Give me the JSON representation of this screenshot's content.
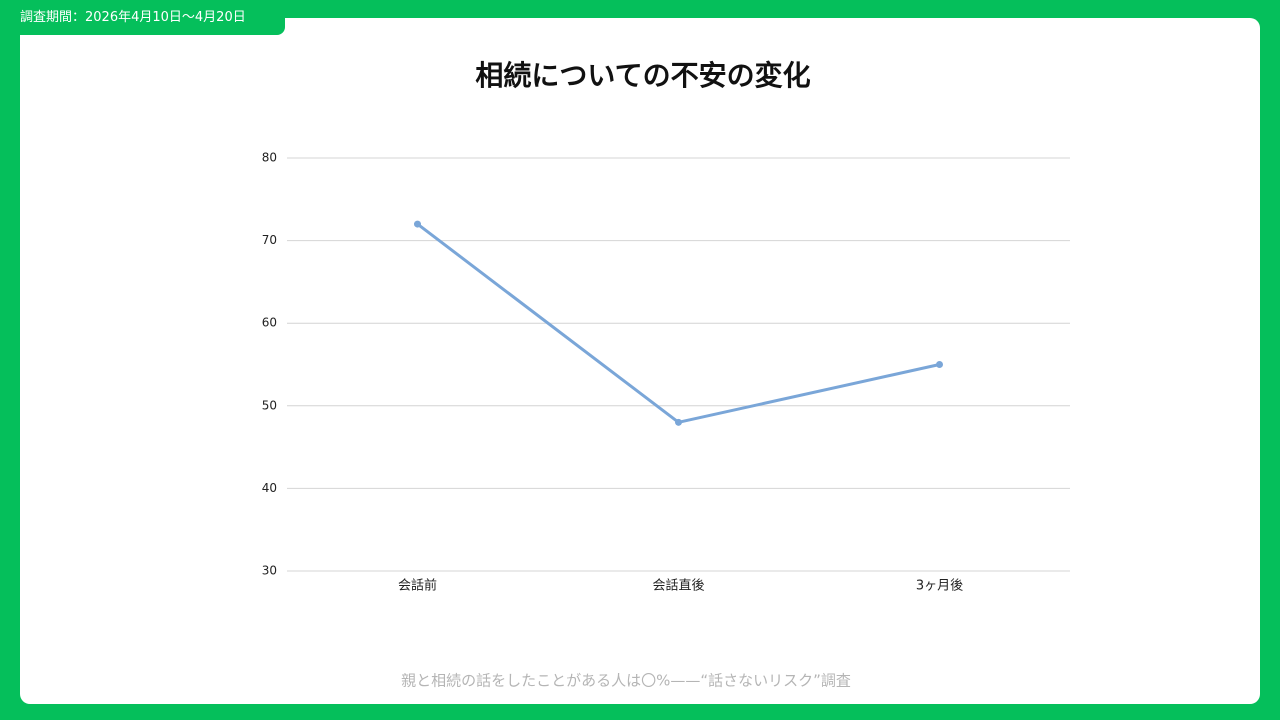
{
  "header": {
    "period": "調査期間：2026年4月10日〜4月20日"
  },
  "footer": "親と相続の話をしたことがある人は〇%——“話さないリスク”調査",
  "chart_data": {
    "type": "line",
    "title": "相続についての不安の変化",
    "categories": [
      "会話前",
      "会話直後",
      "3ヶ月後"
    ],
    "values": [
      72,
      48,
      55
    ],
    "color": "#7aa6d8",
    "ylim": [
      30,
      80
    ],
    "yticks": [
      30,
      40,
      50,
      60,
      70,
      80
    ],
    "grid": true
  }
}
